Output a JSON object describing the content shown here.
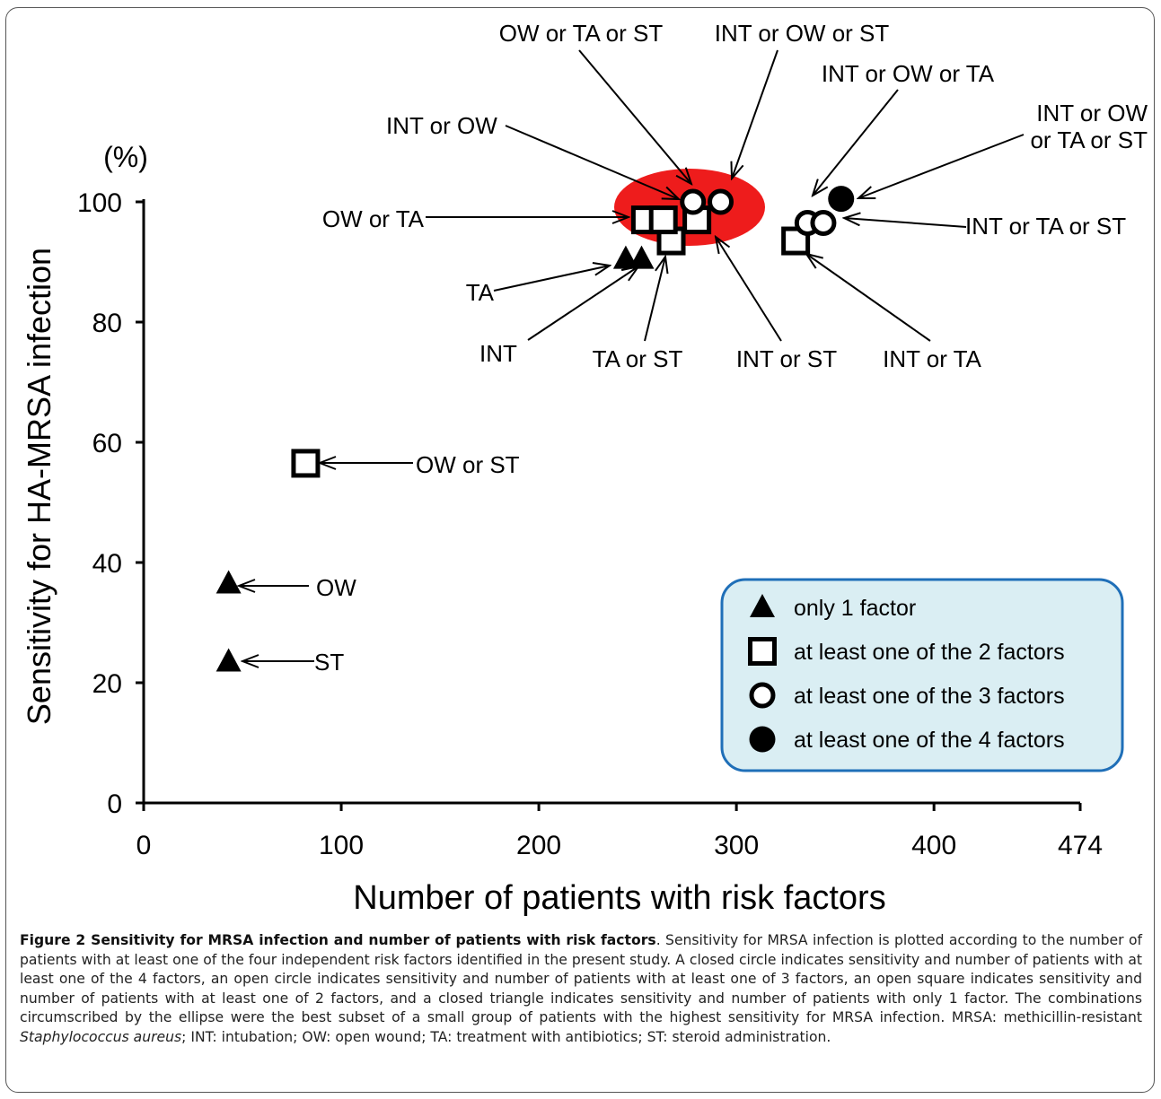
{
  "chart_data": {
    "type": "scatter",
    "xlabel": "Number of patients with risk factors",
    "ylabel": "Sensitivity for HA-MRSA infection",
    "yunit": "(%)",
    "xlim": [
      0,
      474
    ],
    "ylim": [
      0,
      100
    ],
    "xticks": [
      0,
      100,
      200,
      300,
      400,
      474
    ],
    "yticks": [
      0,
      20,
      40,
      60,
      80,
      100
    ],
    "grid": false,
    "legend_position": "bottom-right",
    "colors": {
      "ellipse": "#ee1c1c",
      "legend_bg": "#daeef3",
      "legend_border": "#1f6fb8",
      "marker": "#000000"
    },
    "legend": [
      {
        "marker": "triangle",
        "label": "only 1 factor"
      },
      {
        "marker": "square",
        "label": "at least one of the 2 factors"
      },
      {
        "marker": "circle-open",
        "label": "at least one of the 3 factors"
      },
      {
        "marker": "circle-filled",
        "label": "at least one of the 4 factors"
      }
    ],
    "points": [
      {
        "label": "ST",
        "marker": "triangle",
        "x": 43,
        "y": 23.5
      },
      {
        "label": "OW",
        "marker": "triangle",
        "x": 43,
        "y": 36.5
      },
      {
        "label": "TA",
        "marker": "triangle",
        "x": 244,
        "y": 90.5
      },
      {
        "label": "INT",
        "marker": "triangle",
        "x": 252,
        "y": 90.5
      },
      {
        "label": "OW or ST",
        "marker": "square",
        "x": 82,
        "y": 56.5
      },
      {
        "label": "OW or TA",
        "marker": "square",
        "x": 254,
        "y": 97
      },
      {
        "label": "TA or ST",
        "marker": "square",
        "x": 267,
        "y": 93.5
      },
      {
        "label": "INT or OW",
        "marker": "square",
        "x": 263,
        "y": 97
      },
      {
        "label": "INT or ST",
        "marker": "square",
        "x": 280,
        "y": 97
      },
      {
        "label": "INT or TA",
        "marker": "square",
        "x": 330,
        "y": 93.5
      },
      {
        "label": "OW or TA or ST",
        "marker": "circle-open",
        "x": 278,
        "y": 100
      },
      {
        "label": "INT or OW or ST",
        "marker": "circle-open",
        "x": 292,
        "y": 100
      },
      {
        "label": "INT or OW or TA",
        "marker": "circle-open",
        "x": 336,
        "y": 96.5
      },
      {
        "label": "INT or TA or ST",
        "marker": "circle-open",
        "x": 344,
        "y": 96.5
      },
      {
        "label": "INT or OW or TA or ST",
        "marker": "circle-filled",
        "x": 353,
        "y": 100.5
      }
    ]
  },
  "caption": {
    "title": "Figure 2 Sensitivity for MRSA infection and number of patients with risk factors",
    "text_1": ". Sensitivity for MRSA infection is plotted according to the number of patients with at least one of the four independent risk factors identified in the present study. A closed circle indicates sensitivity and number of patients with at least one of the 4 factors, an open circle indicates sensitivity and number of patients with at least one of 3 factors, an open square indicates sensitivity and number of patients with at least one of 2 factors, and a closed triangle indicates sensitivity and number of patients with only 1 factor. The combinations circumscribed by the ellipse were the best subset of a small group of patients with the highest sensitivity for MRSA infection. MRSA: methicillin-resistant ",
    "species": "Staphylococcus aureus",
    "text_2": "; INT: intubation; OW: open wound; TA: treatment with antibiotics; ST: steroid administration."
  }
}
